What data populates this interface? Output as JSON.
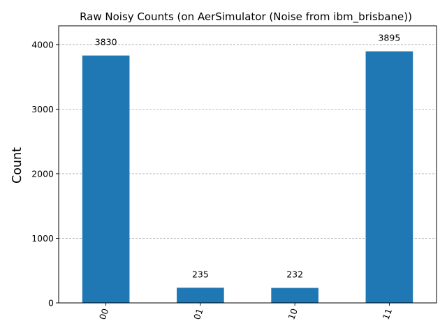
{
  "chart_data": {
    "type": "bar",
    "title": "Raw Noisy Counts (on AerSimulator (Noise from ibm_brisbane))",
    "xlabel": "",
    "ylabel": "Count",
    "categories": [
      "00",
      "01",
      "10",
      "11"
    ],
    "values": [
      3830,
      235,
      232,
      3895
    ],
    "data_labels": [
      "3830",
      "235",
      "232",
      "3895"
    ],
    "ylim": [
      0,
      4290
    ],
    "yticks": [
      0,
      1000,
      2000,
      3000,
      4000
    ],
    "ytick_labels": [
      "0",
      "1000",
      "2000",
      "3000",
      "4000"
    ],
    "xtick_rotation_deg": 70,
    "grid": "y-dashed",
    "bar_color": "#1f77b4",
    "grid_color": "#b0b0b0"
  }
}
